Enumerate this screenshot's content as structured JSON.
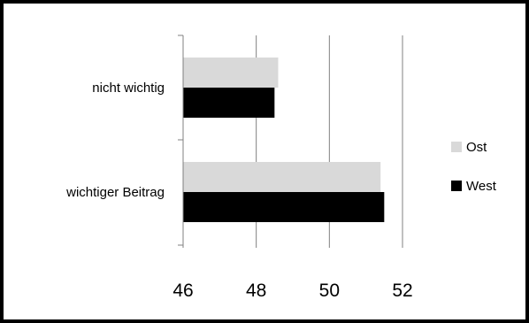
{
  "chart_data": {
    "type": "bar",
    "orientation": "horizontal",
    "categories": [
      "nicht wichtig",
      "wichtiger Beitrag"
    ],
    "series": [
      {
        "name": "Ost",
        "values": [
          48.6,
          51.4
        ],
        "color": "#d9d9d9"
      },
      {
        "name": "West",
        "values": [
          48.5,
          51.5
        ],
        "color": "#000000"
      }
    ],
    "x_ticks": [
      "46",
      "48",
      "50",
      "52"
    ],
    "xlim": [
      46,
      52
    ],
    "title": "",
    "xlabel": "",
    "ylabel": "",
    "grid": "vertical",
    "legend": "right"
  }
}
